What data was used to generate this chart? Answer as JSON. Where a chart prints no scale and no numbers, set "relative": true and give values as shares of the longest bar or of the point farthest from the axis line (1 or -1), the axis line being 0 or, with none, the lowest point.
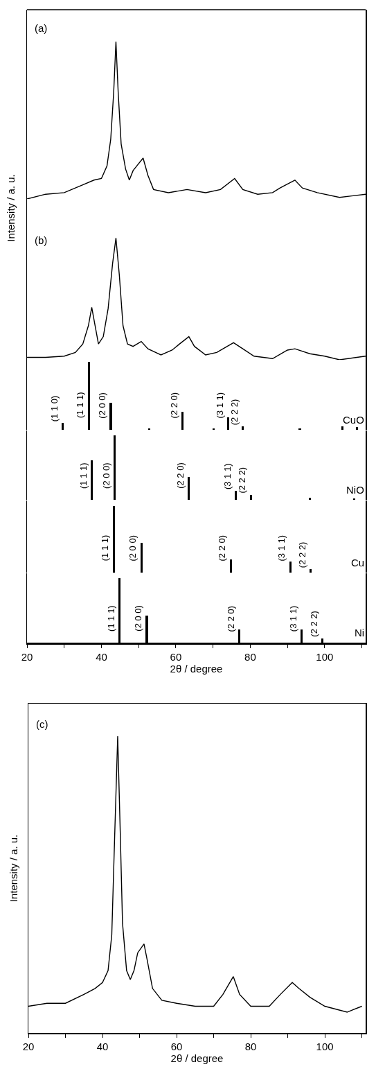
{
  "chart_data": [
    {
      "type": "line",
      "relative": true,
      "color": "#000000",
      "ylabel": "Intensity / a. u.",
      "annotations": [
        "(a)"
      ],
      "xlim": [
        20,
        111
      ],
      "tick_labels": false,
      "x": [
        20,
        25,
        30,
        35,
        38,
        40,
        41.5,
        42.5,
        43.3,
        43.9,
        44.5,
        45.3,
        46.5,
        47.5,
        48.5,
        49.5,
        51.2,
        52.5,
        54,
        58,
        63,
        68,
        72,
        75.8,
        78,
        82,
        86,
        88,
        92,
        94,
        98,
        104,
        111
      ],
      "values": [
        0,
        0.03,
        0.04,
        0.09,
        0.12,
        0.13,
        0.21,
        0.38,
        0.68,
        1,
        0.68,
        0.35,
        0.19,
        0.12,
        0.18,
        0.21,
        0.26,
        0.15,
        0.06,
        0.04,
        0.06,
        0.04,
        0.06,
        0.13,
        0.06,
        0.03,
        0.04,
        0.07,
        0.12,
        0.07,
        0.04,
        0.01,
        0.03
      ]
    },
    {
      "type": "line",
      "relative": true,
      "color": "#000000",
      "annotations": [
        "(b)"
      ],
      "xlim": [
        20,
        111
      ],
      "tick_labels": false,
      "x": [
        20,
        25,
        30,
        33,
        35,
        36.5,
        37.4,
        38.3,
        39.2,
        40.5,
        41.8,
        43,
        43.9,
        44.8,
        45.8,
        47,
        48.5,
        50.7,
        52.5,
        56,
        59,
        61,
        63.5,
        65,
        68,
        71,
        75.5,
        78,
        81,
        86,
        90,
        92,
        96,
        100,
        104,
        111
      ],
      "values": [
        0.02,
        0.02,
        0.03,
        0.06,
        0.13,
        0.28,
        0.43,
        0.28,
        0.13,
        0.19,
        0.42,
        0.79,
        1,
        0.7,
        0.28,
        0.13,
        0.11,
        0.15,
        0.09,
        0.04,
        0.08,
        0.13,
        0.19,
        0.11,
        0.04,
        0.06,
        0.14,
        0.09,
        0.03,
        0.01,
        0.08,
        0.09,
        0.05,
        0.03,
        0,
        0.03
      ]
    },
    {
      "type": "bar",
      "relative": true,
      "xlim": [
        20,
        111
      ],
      "tick_labels": false,
      "x": [
        29.6,
        36.6,
        42.5,
        52.9,
        61.8,
        70.1,
        74.1,
        78.0,
        93.3,
        104.8,
        108.7
      ],
      "series": [
        {
          "name": "CuO",
          "color": "#000000",
          "values": [
            0.1,
            1,
            0.4,
            0.02,
            0.27,
            0.02,
            0.18,
            0.05,
            0.02,
            0.05,
            0.04
          ]
        }
      ],
      "annotations": [
        {
          "text": "(1 1 0)",
          "x": 29.6,
          "y": 0.1
        },
        {
          "text": "(1 1 1)",
          "x": 36.6,
          "y": 0.35
        },
        {
          "text": "(2 0 0)",
          "x": 42.5,
          "y": 0.4
        },
        {
          "text": "(2 2 0)",
          "x": 61.8,
          "y": 0.27
        },
        {
          "text": "(3 1 1)",
          "x": 74.1,
          "y": 0.18
        },
        {
          "text": "(2 2 2)",
          "x": 78.0,
          "y": 0.05
        }
      ]
    },
    {
      "type": "bar",
      "relative": true,
      "xlim": [
        20,
        111
      ],
      "tick_labels": false,
      "x": [
        37.4,
        43.5,
        63.4,
        76.1,
        80.2,
        96.0,
        108.0
      ],
      "series": [
        {
          "name": "NiO",
          "color": "#000000",
          "values": [
            0.62,
            1,
            0.36,
            0.14,
            0.08,
            0.03,
            0.02
          ]
        }
      ],
      "annotations": [
        {
          "text": "(1 1 1)",
          "x": 37.4,
          "y": 0.62
        },
        {
          "text": "(2 0 0)",
          "x": 43.5,
          "y": 0.35
        },
        {
          "text": "(2 2 0)",
          "x": 63.4,
          "y": 0.36
        },
        {
          "text": "(3 1 1)",
          "x": 76.1,
          "y": 0.14
        },
        {
          "text": "(2 2 2)",
          "x": 80.2,
          "y": 0.08
        }
      ]
    },
    {
      "type": "bar",
      "relative": true,
      "xlim": [
        20,
        111
      ],
      "tick_labels": false,
      "x": [
        43.3,
        50.8,
        74.8,
        90.8,
        96.2
      ],
      "series": [
        {
          "name": "Cu",
          "color": "#000000",
          "values": [
            1,
            0.45,
            0.2,
            0.17,
            0.05
          ]
        }
      ],
      "annotations": [
        {
          "text": "(1 1 1)",
          "x": 43.3,
          "y": 0.35
        },
        {
          "text": "(2 0 0)",
          "x": 50.8,
          "y": 0.45
        },
        {
          "text": "(2 2 0)",
          "x": 74.8,
          "y": 0.2
        },
        {
          "text": "(3 1 1)",
          "x": 90.8,
          "y": 0.17
        },
        {
          "text": "(2 2 2)",
          "x": 96.2,
          "y": 0.05
        }
      ]
    },
    {
      "type": "bar",
      "relative": true,
      "xlim": [
        20,
        111
      ],
      "xticks": [
        20,
        {
          "value": 30,
          "label": null
        },
        40,
        {
          "value": 50,
          "label": null
        },
        60,
        {
          "value": 70,
          "label": null
        },
        80,
        {
          "value": 90,
          "label": null
        },
        100,
        {
          "value": 110,
          "label": null
        }
      ],
      "tick_labels": "x",
      "xlabel": "2θ / degree",
      "x": [
        44.8,
        52.2,
        77.1,
        93.8,
        99.4
      ],
      "series": [
        {
          "name": "Ni",
          "color": "#000000",
          "values": [
            1,
            0.42,
            0.21,
            0.2,
            0.07
          ]
        }
      ],
      "annotations": [
        {
          "text": "(1 1 1)",
          "x": 44.8,
          "y": 0.35
        },
        {
          "text": "(2 0 0)",
          "x": 52.2,
          "y": 0.42
        },
        {
          "text": "(2 2 0)",
          "x": 77.1,
          "y": 0.21
        },
        {
          "text": "(3 1 1)",
          "x": 93.8,
          "y": 0.2
        },
        {
          "text": "(2 2 2)",
          "x": 99.4,
          "y": 0.07
        }
      ]
    },
    {
      "type": "line",
      "relative": true,
      "color": "#000000",
      "ylabel": "Intensity / a. u.",
      "xlabel": "2θ / degree",
      "annotations": [
        "(c)"
      ],
      "xlim": [
        20,
        111
      ],
      "xticks": [
        20,
        {
          "value": 30,
          "label": null
        },
        40,
        {
          "value": 50,
          "label": null
        },
        60,
        {
          "value": 70,
          "label": null
        },
        80,
        {
          "value": 90,
          "label": null
        },
        100,
        {
          "value": 110,
          "label": null
        }
      ],
      "tick_labels": "x",
      "x": [
        20,
        25,
        30,
        35,
        38,
        40,
        41.5,
        42.5,
        43.3,
        44.1,
        44.8,
        45.4,
        46.5,
        47.5,
        48.5,
        49.5,
        51.2,
        52,
        53.5,
        56,
        60,
        65,
        70,
        72.5,
        75.3,
        77,
        80,
        85,
        88,
        91.2,
        93,
        96,
        100,
        106,
        110
      ],
      "values": [
        0.09,
        0.1,
        0.1,
        0.13,
        0.15,
        0.17,
        0.21,
        0.33,
        0.67,
        1,
        0.67,
        0.37,
        0.21,
        0.18,
        0.21,
        0.27,
        0.3,
        0.25,
        0.15,
        0.11,
        0.1,
        0.09,
        0.09,
        0.13,
        0.19,
        0.13,
        0.09,
        0.09,
        0.13,
        0.17,
        0.15,
        0.12,
        0.09,
        0.07,
        0.09
      ]
    }
  ]
}
